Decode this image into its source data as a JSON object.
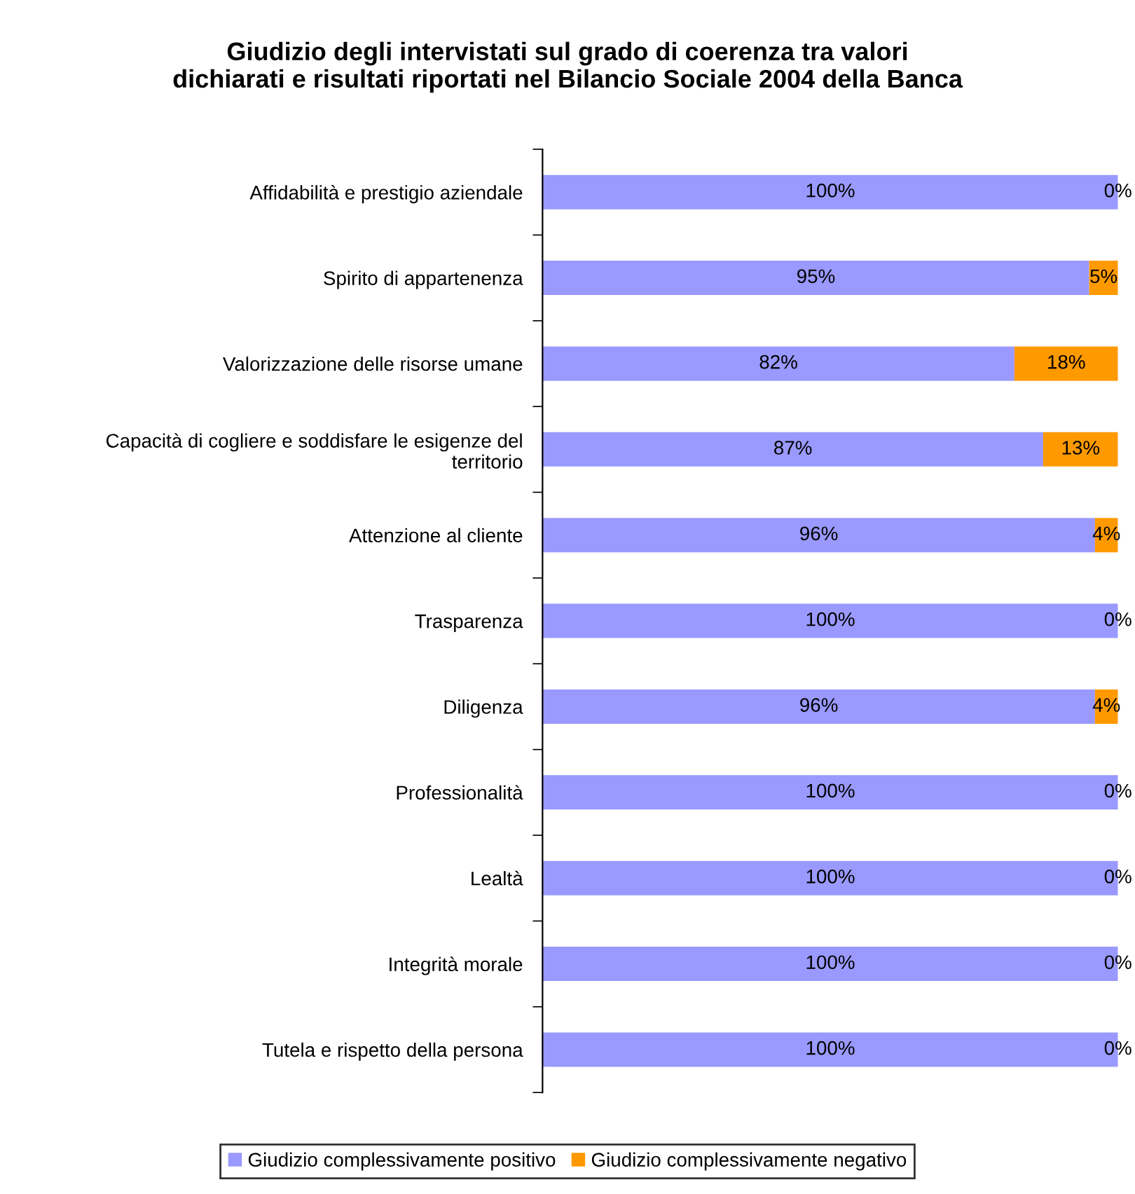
{
  "chart_data": {
    "type": "bar",
    "orientation": "horizontal",
    "stacked": true,
    "title": "Giudizio degli intervistati sul grado di coerenza tra valori\ndichiarati e risultati riportati nel Bilancio Sociale 2004 della Banca",
    "categories": [
      "Affidabilità e prestigio aziendale",
      "Spirito di appartenenza",
      "Valorizzazione delle risorse umane",
      "Capacità di cogliere e soddisfare le esigenze del\nterritorio",
      "Attenzione al cliente",
      "Trasparenza",
      "Diligenza",
      "Professionalità",
      "Lealtà",
      "Integrità morale",
      "Tutela e rispetto della persona"
    ],
    "series": [
      {
        "name": "Giudizio complessivamente positivo",
        "color": "#9999ff",
        "values": [
          100,
          95,
          82,
          87,
          96,
          100,
          96,
          100,
          100,
          100,
          100
        ],
        "value_labels": [
          "100%",
          "95%",
          "82%",
          "87%",
          "96%",
          "100%",
          "96%",
          "100%",
          "100%",
          "100%",
          "100%"
        ]
      },
      {
        "name": "Giudizio complessivamente negativo",
        "color": "#ff9900",
        "values": [
          0,
          5,
          18,
          13,
          4,
          0,
          4,
          0,
          0,
          0,
          0
        ],
        "value_labels": [
          "0%",
          "5%",
          "18%",
          "13%",
          "4%",
          "0%",
          "4%",
          "0%",
          "0%",
          "0%",
          "0%"
        ]
      }
    ],
    "xlim": [
      0,
      100
    ],
    "tick_labels": "y",
    "grid": false,
    "legend": "bottom"
  }
}
